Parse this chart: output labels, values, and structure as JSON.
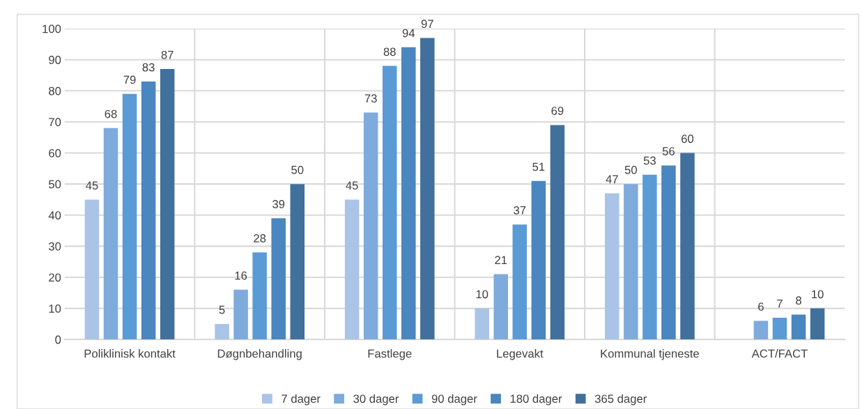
{
  "chart_data": {
    "type": "bar",
    "categories": [
      "Poliklinisk kontakt",
      "Døgnbehandling",
      "Fastlege",
      "Legevakt",
      "Kommunal tjeneste",
      "ACT/FACT"
    ],
    "series": [
      {
        "name": "7 dager",
        "color": "#a9c4e6",
        "values": [
          45,
          5,
          45,
          10,
          47,
          null
        ]
      },
      {
        "name": "30 dager",
        "color": "#7faadc",
        "values": [
          68,
          16,
          73,
          21,
          50,
          6
        ]
      },
      {
        "name": "90 dager",
        "color": "#5b9bd5",
        "values": [
          79,
          28,
          88,
          37,
          53,
          7
        ]
      },
      {
        "name": "180 dager",
        "color": "#4a86bf",
        "values": [
          83,
          39,
          94,
          51,
          56,
          8
        ]
      },
      {
        "name": "365 dager",
        "color": "#41709c",
        "values": [
          87,
          50,
          97,
          69,
          60,
          10
        ]
      }
    ],
    "ylim": [
      0,
      100
    ],
    "yticks": [
      0,
      10,
      20,
      30,
      40,
      50,
      60,
      70,
      80,
      90,
      100
    ],
    "grid": true,
    "legend": "bottom",
    "data_labels": true
  }
}
